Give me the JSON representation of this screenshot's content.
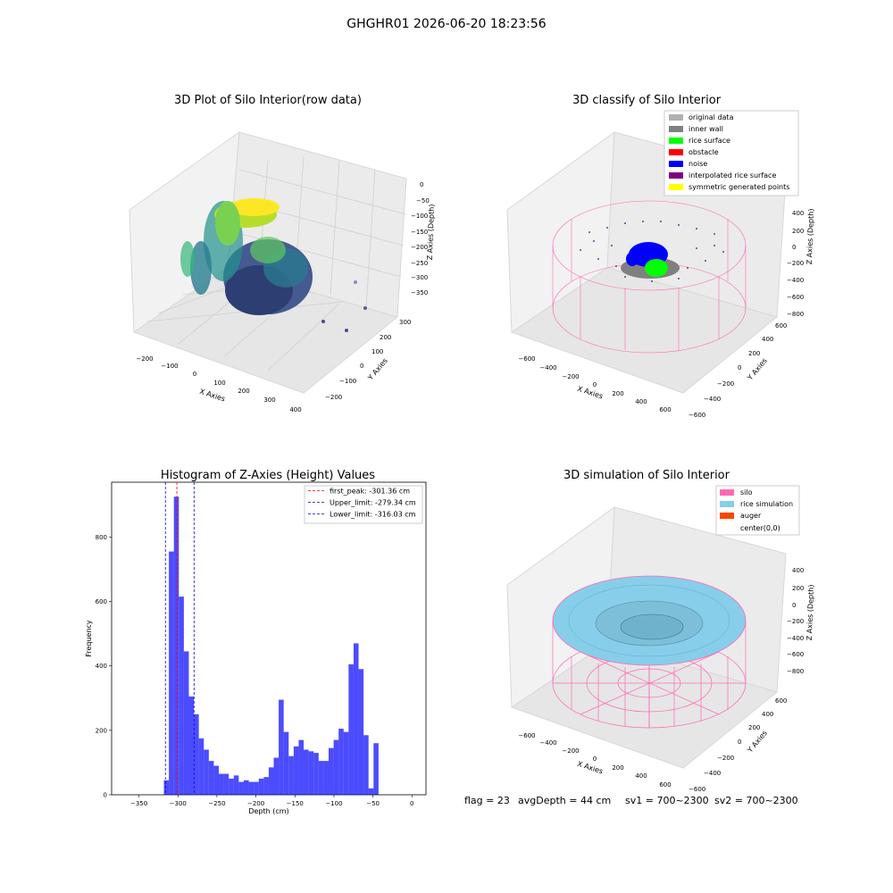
{
  "suptitle": "GHGHR01 2026-06-20 18:23:56",
  "footer": {
    "flag": "flag = 23",
    "avg_depth": "avgDepth = 44 cm",
    "sv1": "sv1 = 700~2300",
    "sv2": "sv2 = 700~2300"
  },
  "panels": {
    "raw": {
      "title": "3D Plot of Silo Interior(row data)",
      "xlabel": "X Axies",
      "ylabel": "Y Axies",
      "zlabel": "Z Axies (Depth)",
      "xticks": [
        "−200",
        "−100",
        "0",
        "100",
        "200",
        "300",
        "400"
      ],
      "yticks": [
        "300",
        "200",
        "100",
        "0",
        "−100",
        "−200"
      ],
      "zticks": [
        "0",
        "−50",
        "−100",
        "−150",
        "−200",
        "−250",
        "−300",
        "−350"
      ]
    },
    "classify": {
      "title": "3D classify of Silo Interior",
      "xlabel": "X Axies",
      "ylabel": "Y Axies",
      "zlabel": "Z Axies (Depth)",
      "xticks": [
        "−600",
        "−400",
        "−200",
        "0",
        "200",
        "400",
        "600"
      ],
      "yticks": [
        "600",
        "400",
        "200",
        "0",
        "−200",
        "−400",
        "−600"
      ],
      "zticks": [
        "400",
        "200",
        "0",
        "−200",
        "−400",
        "−600",
        "−800"
      ],
      "legend": [
        {
          "label": "original data",
          "color": "#b0b0b0"
        },
        {
          "label": "inner wall",
          "color": "#808080"
        },
        {
          "label": "rice surface",
          "color": "#00ff00"
        },
        {
          "label": "obstacle",
          "color": "#ff0000"
        },
        {
          "label": "noise",
          "color": "#0000ff"
        },
        {
          "label": "interpolated rice surface",
          "color": "#800080"
        },
        {
          "label": "symmetric generated points",
          "color": "#ffff00"
        }
      ]
    },
    "simulation": {
      "title": "3D simulation of Silo Interior",
      "xlabel": "X Axies",
      "ylabel": "Y Axies",
      "zlabel": "Z Axies (Depth)",
      "xticks": [
        "−600",
        "−400",
        "−200",
        "0",
        "200",
        "400",
        "600"
      ],
      "yticks": [
        "600",
        "400",
        "200",
        "0",
        "−200",
        "−400",
        "−600"
      ],
      "zticks": [
        "400",
        "200",
        "0",
        "−200",
        "−400",
        "−600",
        "−800"
      ],
      "legend": [
        {
          "label": "silo",
          "color": "#ff69b4"
        },
        {
          "label": "rice simulation",
          "color": "#87ceeb"
        },
        {
          "label": "auger",
          "color": "#ff4500"
        },
        {
          "label": "center(0,0)",
          "color": "#ffffff"
        }
      ]
    }
  },
  "chart_data": {
    "type": "bar",
    "title": "Histogram of Z-Axies (Height) Values",
    "xlabel": "Depth (cm)",
    "ylabel": "Frequency",
    "xlim": [
      -385,
      18
    ],
    "ylim": [
      0,
      970
    ],
    "xticks": [
      -350,
      -300,
      -250,
      -200,
      -150,
      -100,
      -50,
      0
    ],
    "xtick_labels": [
      "−350",
      "−300",
      "−250",
      "−200",
      "−150",
      "−100",
      "−50",
      "0"
    ],
    "yticks": [
      0,
      200,
      400,
      600,
      800
    ],
    "bar_color": "#0000ff",
    "bin_edges_start": -318,
    "bin_width": 6.4,
    "values": [
      45,
      755,
      925,
      615,
      445,
      305,
      250,
      175,
      140,
      105,
      90,
      65,
      65,
      50,
      60,
      40,
      45,
      40,
      40,
      50,
      55,
      85,
      115,
      295,
      195,
      120,
      150,
      170,
      140,
      135,
      130,
      105,
      105,
      145,
      170,
      205,
      195,
      405,
      470,
      390,
      185,
      20,
      160
    ],
    "vlines": [
      {
        "label": "first_peak: -301.36 cm",
        "x": -301.36,
        "color": "#ff0000"
      },
      {
        "label": "Upper_limit: -279.34 cm",
        "x": -279.34,
        "color": "#0000ff"
      },
      {
        "label": "Lower_limit: -316.03 cm",
        "x": -316.03,
        "color": "#0000ff"
      }
    ],
    "legend_position": "upper right"
  }
}
